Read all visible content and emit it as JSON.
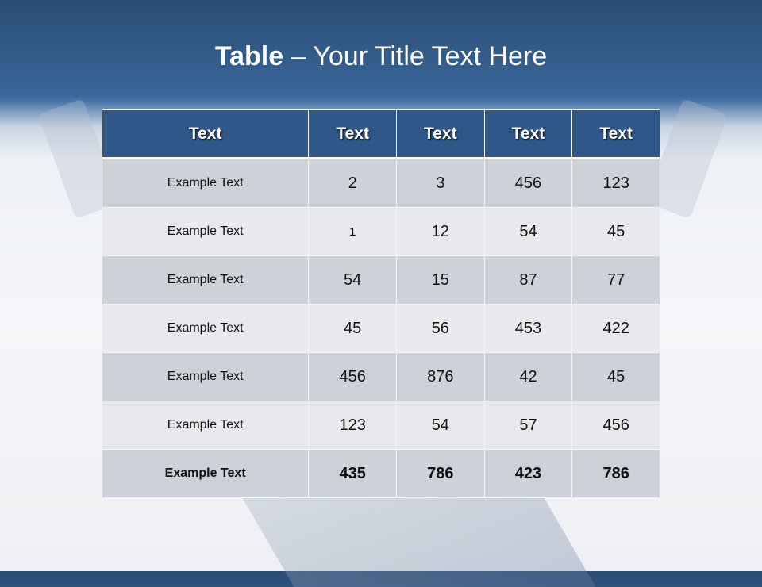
{
  "slide": {
    "title_bold": "Table",
    "title_rest": " – Your Title Text Here"
  },
  "table": {
    "headers": [
      "Text",
      "Text",
      "Text",
      "Text",
      "Text"
    ],
    "rows": [
      [
        "Example Text",
        "2",
        "3",
        "456",
        "123"
      ],
      [
        "Example Text",
        "1",
        "12",
        "54",
        "45"
      ],
      [
        "Example Text",
        "54",
        "15",
        "87",
        "77"
      ],
      [
        "Example Text",
        "45",
        "56",
        "453",
        "422"
      ],
      [
        "Example Text",
        "456",
        "876",
        "42",
        "45"
      ],
      [
        "Example Text",
        "123",
        "54",
        "57",
        "456"
      ],
      [
        "Example Text",
        "435",
        "786",
        "423",
        "786"
      ]
    ]
  },
  "colors": {
    "header_bg": "#2f5888",
    "row_dark": "#cdd1d8",
    "row_light": "#e7e9ed",
    "title_band": "#3a6699"
  }
}
